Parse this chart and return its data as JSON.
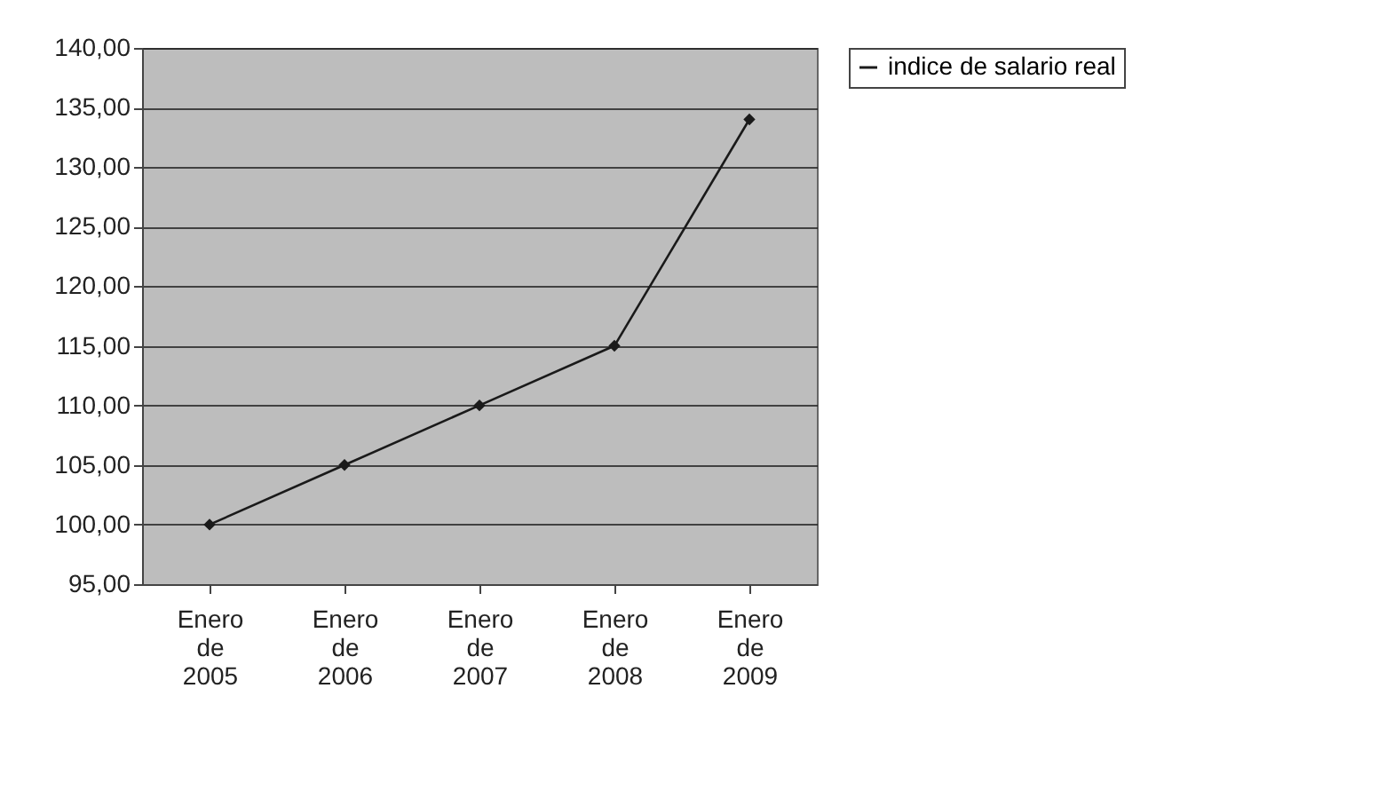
{
  "chart_data": {
    "type": "line",
    "categories": [
      "Enero\nde\n2005",
      "Enero\nde\n2006",
      "Enero\nde\n2007",
      "Enero\nde\n2008",
      "Enero\nde\n2009"
    ],
    "series": [
      {
        "name": "indice de salario real",
        "color": "#1a1a1a",
        "values": [
          100,
          105,
          110,
          115,
          134
        ]
      }
    ],
    "ylim": [
      95,
      140
    ],
    "yticks": [
      {
        "value": 95,
        "label": "95,00"
      },
      {
        "value": 100,
        "label": "100,00"
      },
      {
        "value": 105,
        "label": "105,00"
      },
      {
        "value": 110,
        "label": "110,00"
      },
      {
        "value": 115,
        "label": "115,00"
      },
      {
        "value": 120,
        "label": "120,00"
      },
      {
        "value": 125,
        "label": "125,00"
      },
      {
        "value": 130,
        "label": "130,00"
      },
      {
        "value": 135,
        "label": "135,00"
      },
      {
        "value": 140,
        "label": "140,00"
      }
    ],
    "grid": "y",
    "legend": "right",
    "marker": "diamond",
    "line_style": "solid"
  }
}
